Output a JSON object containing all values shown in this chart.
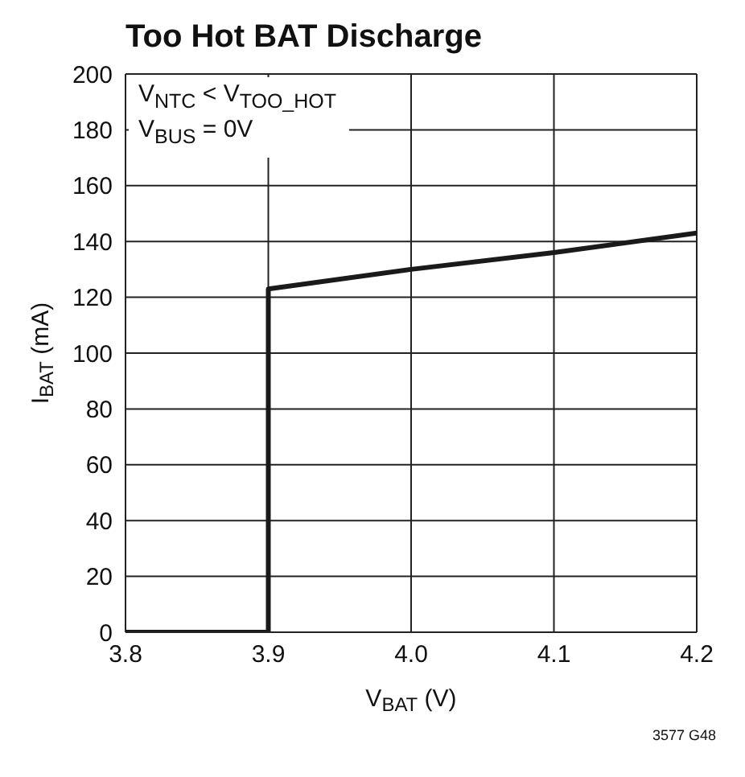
{
  "chart_data": {
    "type": "line",
    "title": "Too Hot BAT Discharge",
    "xlabel": "V$_{BAT}$ (V)",
    "ylabel": "I$_{BAT}$ (mA)",
    "x": [
      3.8,
      3.9,
      3.9,
      4.0,
      4.1,
      4.2
    ],
    "series": [
      {
        "color": "#1a1a1a",
        "values": [
          0,
          0,
          123,
          130,
          136,
          143
        ]
      }
    ],
    "xlim": [
      3.8,
      4.2
    ],
    "xticks": [
      {
        "value": 3.8,
        "label": "3.8"
      },
      {
        "value": 3.9,
        "label": "3.9"
      },
      {
        "value": 4.0,
        "label": "4.0"
      },
      {
        "value": 4.1,
        "label": "4.1"
      },
      {
        "value": 4.2,
        "label": "4.2"
      }
    ],
    "ylim": [
      0,
      200
    ],
    "yticks": [
      0,
      20,
      40,
      60,
      80,
      100,
      120,
      140,
      160,
      180,
      200
    ],
    "grid": true,
    "marker": "none",
    "line_style": "solid",
    "annotations": [
      "V$_{NTC}$ < V$_{TOO_HOT}$",
      "V$_{BUS}$ = 0V",
      "3577 G48"
    ]
  }
}
